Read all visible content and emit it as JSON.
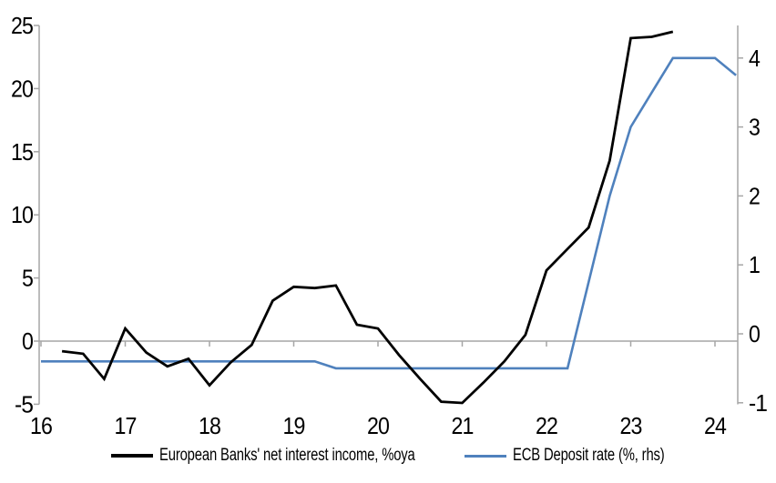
{
  "chart_data": {
    "type": "line",
    "title": "",
    "legend_position": "bottom",
    "grid": false,
    "axis_color": "#a6a6a6",
    "x_axis": {
      "ticks": [
        16,
        17,
        18,
        19,
        20,
        21,
        22,
        23,
        24
      ],
      "range": [
        16,
        24.27
      ]
    },
    "left_axis": {
      "ticks": [
        -5,
        0,
        5,
        10,
        15,
        20,
        25
      ],
      "range": [
        -5,
        25
      ]
    },
    "right_axis": {
      "ticks": [
        -1,
        0,
        1,
        2,
        3,
        4
      ],
      "range": [
        -1.07,
        4.47
      ]
    },
    "series": [
      {
        "name": "European Banks' net interest income, %oya",
        "axis": "left",
        "color": "#000000",
        "width": 2.8,
        "x": [
          16.25,
          16.5,
          16.75,
          17,
          17.25,
          17.5,
          17.75,
          18,
          18.25,
          18.5,
          18.75,
          19,
          19.25,
          19.5,
          19.75,
          20,
          20.25,
          20.5,
          20.75,
          21,
          21.25,
          21.5,
          21.75,
          22,
          22.25,
          22.5,
          22.75,
          23,
          23.25,
          23.5
        ],
        "values": [
          -0.8,
          -1.0,
          -3.0,
          1.0,
          -0.9,
          -2.0,
          -1.4,
          -3.5,
          -1.7,
          -0.3,
          3.2,
          4.3,
          4.2,
          4.4,
          1.3,
          1.0,
          -1.1,
          -3.0,
          -4.8,
          -4.9,
          -3.3,
          -1.6,
          0.5,
          5.6,
          7.3,
          9.0,
          14.3,
          24.0,
          24.1,
          24.5
        ]
      },
      {
        "name": "ECB Deposit rate (%, rhs)",
        "axis": "right",
        "color": "#4f81bd",
        "width": 2.6,
        "x": [
          16,
          16.25,
          16.5,
          16.75,
          17,
          17.25,
          17.5,
          17.75,
          18,
          18.25,
          18.5,
          18.75,
          19,
          19.25,
          19.5,
          19.75,
          20,
          20.25,
          20.5,
          20.75,
          21,
          21.25,
          21.5,
          21.75,
          22,
          22.25,
          22.5,
          22.75,
          23,
          23.25,
          23.5,
          23.75,
          24,
          24.25
        ],
        "values": [
          -0.4,
          -0.4,
          -0.4,
          -0.4,
          -0.4,
          -0.4,
          -0.4,
          -0.4,
          -0.4,
          -0.4,
          -0.4,
          -0.4,
          -0.4,
          -0.4,
          -0.5,
          -0.5,
          -0.5,
          -0.5,
          -0.5,
          -0.5,
          -0.5,
          -0.5,
          -0.5,
          -0.5,
          -0.5,
          -0.5,
          0.75,
          2.0,
          3.0,
          3.5,
          4.0,
          4.0,
          4.0,
          3.75
        ]
      }
    ]
  }
}
